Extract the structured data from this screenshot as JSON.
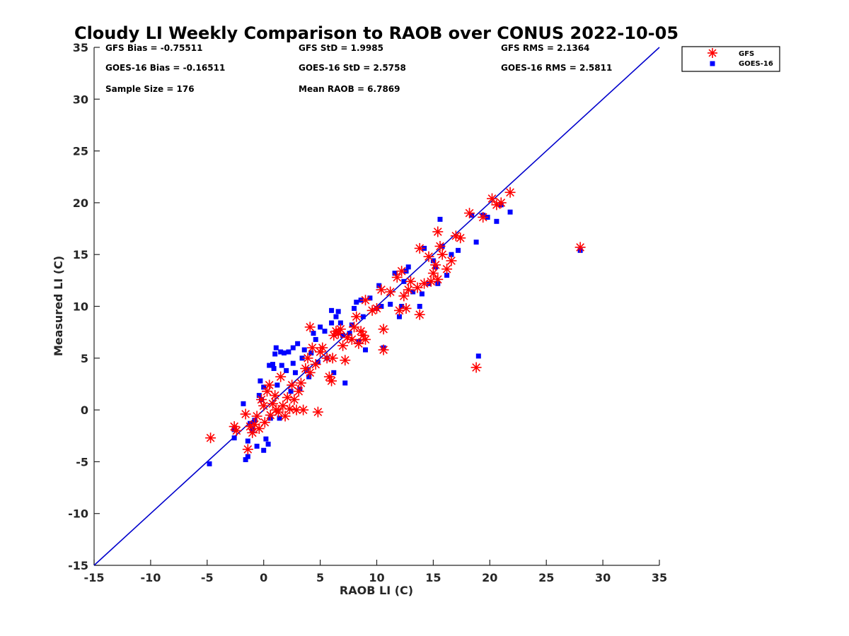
{
  "chart_data": {
    "type": "scatter",
    "title": "Cloudy LI Weekly Comparison to RAOB over CONUS 2022-10-05",
    "xlabel": "RAOB LI (C)",
    "ylabel": "Measured LI (C)",
    "xlim": [
      -15,
      35
    ],
    "ylim": [
      -15,
      35
    ],
    "xticks": [
      -15,
      -10,
      -5,
      0,
      5,
      10,
      15,
      20,
      25,
      30,
      35
    ],
    "yticks": [
      -15,
      -10,
      -5,
      0,
      5,
      10,
      15,
      20,
      25,
      30,
      35
    ],
    "xtick_labels": [
      "-15",
      "-10",
      "-5",
      "0",
      "5",
      "10",
      "15",
      "20",
      "25",
      "30",
      "35"
    ],
    "ytick_labels": [
      "-15",
      "-10",
      "-5",
      "0",
      "5",
      "10",
      "15",
      "20",
      "25",
      "30",
      "35"
    ],
    "grid": false,
    "legend_position": "top-right",
    "reference_line": {
      "from": [
        -15,
        -15
      ],
      "to": [
        35,
        35
      ],
      "color": "#0000cc"
    },
    "stats": [
      {
        "text": "GFS Bias = -0.75511"
      },
      {
        "text": "GFS StD = 1.9985"
      },
      {
        "text": "GFS RMS = 2.1364"
      },
      {
        "text": "GOES-16 Bias = -0.16511"
      },
      {
        "text": "GOES-16 StD = 2.5758"
      },
      {
        "text": "GOES-16 RMS = 2.5811"
      },
      {
        "text": "Sample Size = 176"
      },
      {
        "text": "Mean RAOB = 6.7869"
      }
    ],
    "series": [
      {
        "name": "GFS",
        "marker": "asterisk",
        "color": "#ff0000",
        "points": [
          [
            -4.7,
            -2.7
          ],
          [
            -2.6,
            -1.6
          ],
          [
            -2.4,
            -2.0
          ],
          [
            -1.6,
            -0.4
          ],
          [
            -1.4,
            -3.8
          ],
          [
            -1.2,
            -1.6
          ],
          [
            -1.0,
            -2.2
          ],
          [
            -0.8,
            -1.4
          ],
          [
            -0.6,
            -0.6
          ],
          [
            -0.4,
            -1.8
          ],
          [
            -0.2,
            1.0
          ],
          [
            0.0,
            0.4
          ],
          [
            0.1,
            -1.2
          ],
          [
            0.3,
            1.8
          ],
          [
            0.5,
            2.4
          ],
          [
            0.6,
            -0.5
          ],
          [
            0.8,
            0.6
          ],
          [
            1.0,
            1.4
          ],
          [
            1.1,
            0.0
          ],
          [
            1.3,
            -0.2
          ],
          [
            1.5,
            3.2
          ],
          [
            1.7,
            0.4
          ],
          [
            1.9,
            -0.6
          ],
          [
            2.1,
            1.2
          ],
          [
            2.3,
            0.1
          ],
          [
            2.5,
            2.4
          ],
          [
            2.7,
            1.0
          ],
          [
            2.9,
            0.0
          ],
          [
            3.1,
            1.8
          ],
          [
            3.3,
            2.6
          ],
          [
            3.5,
            0.0
          ],
          [
            3.7,
            4.0
          ],
          [
            3.9,
            5.0
          ],
          [
            4.1,
            3.6
          ],
          [
            4.3,
            6.0
          ],
          [
            4.1,
            8.0
          ],
          [
            4.6,
            4.4
          ],
          [
            4.8,
            -0.2
          ],
          [
            5.0,
            5.6
          ],
          [
            5.2,
            6.0
          ],
          [
            5.6,
            5.0
          ],
          [
            5.8,
            3.2
          ],
          [
            6.0,
            2.8
          ],
          [
            6.1,
            5.0
          ],
          [
            6.2,
            7.2
          ],
          [
            6.4,
            7.6
          ],
          [
            6.6,
            7.4
          ],
          [
            6.8,
            7.8
          ],
          [
            7.0,
            6.2
          ],
          [
            7.2,
            4.8
          ],
          [
            7.4,
            7.0
          ],
          [
            7.8,
            6.8
          ],
          [
            8.0,
            8.0
          ],
          [
            8.2,
            9.0
          ],
          [
            8.4,
            6.4
          ],
          [
            8.6,
            7.6
          ],
          [
            8.8,
            7.2
          ],
          [
            9.0,
            6.8
          ],
          [
            9.0,
            10.6
          ],
          [
            9.6,
            9.6
          ],
          [
            10.0,
            9.8
          ],
          [
            10.4,
            11.6
          ],
          [
            10.6,
            7.8
          ],
          [
            10.6,
            5.8
          ],
          [
            11.2,
            11.4
          ],
          [
            11.8,
            12.8
          ],
          [
            12.0,
            9.6
          ],
          [
            12.2,
            13.4
          ],
          [
            12.4,
            11.0
          ],
          [
            12.6,
            9.8
          ],
          [
            12.8,
            11.6
          ],
          [
            13.0,
            12.4
          ],
          [
            13.6,
            11.8
          ],
          [
            13.8,
            9.2
          ],
          [
            13.8,
            15.6
          ],
          [
            14.2,
            12.2
          ],
          [
            14.6,
            14.8
          ],
          [
            14.8,
            12.4
          ],
          [
            15.0,
            13.2
          ],
          [
            15.2,
            14.0
          ],
          [
            15.4,
            12.6
          ],
          [
            15.4,
            17.2
          ],
          [
            15.6,
            15.8
          ],
          [
            15.8,
            15.0
          ],
          [
            16.2,
            13.6
          ],
          [
            16.6,
            14.4
          ],
          [
            17.0,
            16.8
          ],
          [
            17.4,
            16.6
          ],
          [
            18.2,
            19.0
          ],
          [
            18.8,
            4.1
          ],
          [
            19.4,
            18.6
          ],
          [
            20.2,
            20.4
          ],
          [
            20.6,
            19.8
          ],
          [
            21.0,
            20.0
          ],
          [
            21.8,
            21.0
          ],
          [
            28.0,
            15.7
          ]
        ]
      },
      {
        "name": "GOES-16",
        "marker": "square",
        "color": "#0000ff",
        "points": [
          [
            -4.8,
            -5.2
          ],
          [
            -2.6,
            -2.7
          ],
          [
            -2.6,
            -1.9
          ],
          [
            -1.8,
            0.6
          ],
          [
            -1.6,
            -4.8
          ],
          [
            -1.4,
            -4.5
          ],
          [
            -1.4,
            -3.0
          ],
          [
            -1.2,
            -1.3
          ],
          [
            -1.0,
            -1.9
          ],
          [
            -0.8,
            -1.0
          ],
          [
            -0.6,
            -3.5
          ],
          [
            -0.4,
            1.4
          ],
          [
            -0.3,
            2.8
          ],
          [
            -0.2,
            1.0
          ],
          [
            0.0,
            -3.9
          ],
          [
            0.0,
            2.2
          ],
          [
            0.2,
            -2.8
          ],
          [
            0.4,
            -3.3
          ],
          [
            0.5,
            4.3
          ],
          [
            0.6,
            -0.8
          ],
          [
            0.8,
            4.4
          ],
          [
            0.9,
            4.0
          ],
          [
            1.0,
            5.4
          ],
          [
            1.1,
            6.0
          ],
          [
            1.2,
            2.4
          ],
          [
            1.4,
            -0.8
          ],
          [
            1.5,
            5.6
          ],
          [
            1.6,
            4.3
          ],
          [
            1.8,
            5.5
          ],
          [
            2.0,
            3.8
          ],
          [
            2.2,
            5.6
          ],
          [
            2.4,
            1.8
          ],
          [
            2.6,
            4.5
          ],
          [
            2.6,
            6.0
          ],
          [
            2.8,
            3.6
          ],
          [
            3.0,
            6.4
          ],
          [
            3.2,
            2.0
          ],
          [
            3.4,
            5.0
          ],
          [
            3.6,
            5.8
          ],
          [
            3.8,
            3.9
          ],
          [
            4.0,
            3.2
          ],
          [
            4.2,
            5.5
          ],
          [
            4.4,
            7.4
          ],
          [
            4.6,
            6.8
          ],
          [
            4.8,
            4.6
          ],
          [
            5.0,
            8.0
          ],
          [
            5.4,
            7.6
          ],
          [
            5.6,
            5.0
          ],
          [
            6.0,
            8.4
          ],
          [
            6.0,
            9.6
          ],
          [
            6.2,
            3.6
          ],
          [
            6.4,
            9.0
          ],
          [
            6.6,
            9.5
          ],
          [
            6.8,
            8.4
          ],
          [
            7.0,
            7.2
          ],
          [
            7.2,
            2.6
          ],
          [
            7.6,
            7.4
          ],
          [
            7.8,
            8.2
          ],
          [
            8.0,
            9.8
          ],
          [
            8.2,
            10.4
          ],
          [
            8.4,
            6.6
          ],
          [
            8.6,
            10.6
          ],
          [
            8.8,
            9.0
          ],
          [
            9.0,
            5.8
          ],
          [
            9.4,
            10.8
          ],
          [
            10.0,
            9.8
          ],
          [
            10.2,
            12.0
          ],
          [
            10.4,
            10.0
          ],
          [
            10.6,
            6.0
          ],
          [
            11.2,
            10.2
          ],
          [
            11.6,
            13.2
          ],
          [
            12.0,
            9.0
          ],
          [
            12.2,
            10.0
          ],
          [
            12.4,
            12.4
          ],
          [
            12.6,
            13.4
          ],
          [
            12.8,
            13.8
          ],
          [
            13.2,
            11.4
          ],
          [
            13.8,
            10.0
          ],
          [
            14.0,
            11.2
          ],
          [
            14.2,
            15.6
          ],
          [
            14.6,
            12.2
          ],
          [
            15.0,
            14.4
          ],
          [
            15.2,
            13.8
          ],
          [
            15.4,
            12.2
          ],
          [
            15.6,
            18.4
          ],
          [
            15.8,
            15.8
          ],
          [
            16.2,
            13.0
          ],
          [
            16.6,
            15.0
          ],
          [
            17.2,
            15.4
          ],
          [
            18.4,
            18.8
          ],
          [
            18.8,
            16.2
          ],
          [
            19.0,
            5.2
          ],
          [
            19.4,
            18.8
          ],
          [
            19.8,
            18.6
          ],
          [
            20.6,
            18.2
          ],
          [
            21.0,
            19.8
          ],
          [
            21.8,
            19.1
          ],
          [
            28.0,
            15.4
          ]
        ]
      }
    ]
  }
}
